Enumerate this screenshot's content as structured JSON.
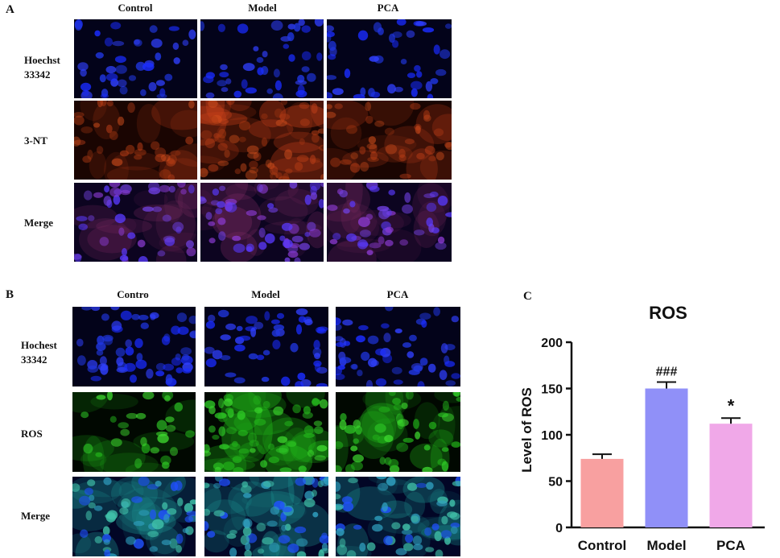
{
  "panel_a": {
    "letter": "A",
    "columns": [
      "Control",
      "Model",
      "PCA"
    ],
    "rows": [
      {
        "label": "Hoechst 33342",
        "stain": "blue"
      },
      {
        "label": "3-NT",
        "stain": "red"
      },
      {
        "label": "Merge",
        "stain": "purple"
      }
    ]
  },
  "panel_b": {
    "letter": "B",
    "columns": [
      "Contro",
      "Model",
      "PCA"
    ],
    "rows": [
      {
        "label": "Hochest 33342",
        "stain": "blue"
      },
      {
        "label": "ROS",
        "stain": "green"
      },
      {
        "label": "Merge",
        "stain": "cyan"
      }
    ]
  },
  "panel_c": {
    "letter": "C"
  },
  "colors": {
    "blue_nuclei": "#1a2cff",
    "red_stain": "#c8401a",
    "green_stain": "#22c01a",
    "bar_control": "#f8a0a0",
    "bar_model": "#9090f8",
    "bar_pca": "#f0a8e8"
  },
  "chart_data": {
    "type": "bar",
    "title": "ROS",
    "ylabel": "Level of ROS",
    "xlabel": "",
    "categories": [
      "Control",
      "Model",
      "PCA"
    ],
    "values": [
      74,
      150,
      112
    ],
    "errors": [
      5,
      7,
      6
    ],
    "annotations": [
      "",
      "###",
      "*"
    ],
    "bar_colors": [
      "#f8a0a0",
      "#9090f8",
      "#f0a8e8"
    ],
    "ylim": [
      0,
      200
    ],
    "yticks": [
      "0",
      "50",
      "100",
      "150",
      "200"
    ],
    "grid": false,
    "legend": "none"
  }
}
